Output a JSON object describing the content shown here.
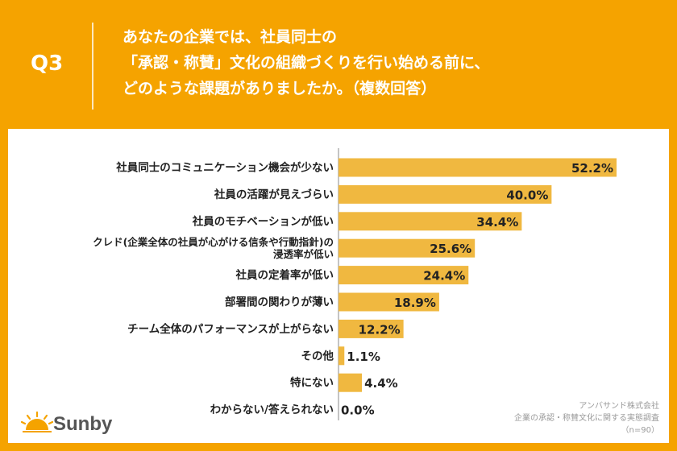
{
  "header": {
    "question_number": "Q3",
    "question_lines": [
      "あなたの企業では、社員同士の",
      "「承認・称賛」文化の組織づくりを行い始める前に、",
      "どのような課題がありましたか。（複数回答）"
    ]
  },
  "chart_data": {
    "type": "bar",
    "orientation": "horizontal",
    "categories": [
      [
        "社員同士のコミュニケーション機会が少ない"
      ],
      [
        "社員の活躍が見えづらい"
      ],
      [
        "社員のモチベーションが低い"
      ],
      [
        "クレド(企業全体の社員が心がける信条や行動指針)の",
        "浸透率が低い"
      ],
      [
        "社員の定着率が低い"
      ],
      [
        "部署間の関わりが薄い"
      ],
      [
        "チーム全体のパフォーマンスが上がらない"
      ],
      [
        "その他"
      ],
      [
        "特にない"
      ],
      [
        "わからない/答えられない"
      ]
    ],
    "values": [
      52.2,
      40.0,
      34.4,
      25.6,
      24.4,
      18.9,
      12.2,
      1.1,
      4.4,
      0.0
    ],
    "value_labels": [
      "52.2%",
      "40.0%",
      "34.4%",
      "25.6%",
      "24.4%",
      "18.9%",
      "12.2%",
      "1.1%",
      "4.4%",
      "0.0%"
    ],
    "xlim": [
      0,
      60
    ],
    "grid": false,
    "bar_color": "#f0b840"
  },
  "footer": {
    "source_lines": [
      "アンバサンド株式会社",
      "企業の承認・称賛文化に関する実態調査",
      "（n=90）"
    ],
    "logo_text": "Sunby"
  },
  "colors": {
    "background": "#f5a300",
    "panel": "#ffffff",
    "bar": "#f0b840",
    "text": "#222222"
  }
}
